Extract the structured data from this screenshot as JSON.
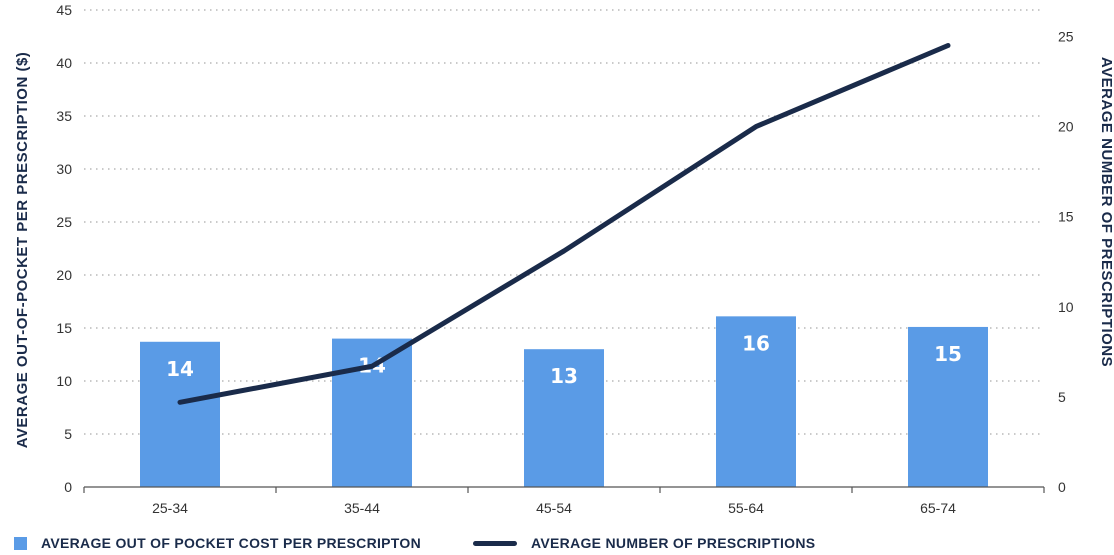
{
  "chart_data": {
    "type": "bar+line",
    "categories": [
      "25-34",
      "35-44",
      "45-54",
      "55-64",
      "65-74"
    ],
    "series": [
      {
        "name": "AVERAGE OUT OF POCKET COST PER PRESCRIPTON",
        "type": "bar",
        "axis": "left",
        "values": [
          14,
          14,
          13,
          16,
          15
        ],
        "labels": [
          "14",
          "14",
          "13",
          "16",
          "15"
        ],
        "plotted_values": [
          13.7,
          14.0,
          13.0,
          16.1,
          15.1
        ],
        "color": "#5a9be6"
      },
      {
        "name": "AVERAGE NUMBER OF PRESCRIPTIONS",
        "type": "line",
        "axis": "right",
        "values": [
          4.7,
          6.7,
          13.1,
          20.0,
          24.5
        ],
        "color": "#1a2b4a"
      }
    ],
    "y_left": {
      "label": "AVERAGE OUT-OF-POCKET PER PRESCRIPTION ($)",
      "ylim": [
        0,
        45
      ],
      "ticks": [
        0,
        5,
        10,
        15,
        20,
        25,
        30,
        35,
        40,
        45
      ]
    },
    "y_right": {
      "label": "AVERAGE NUMBER OF PRESCRIPTIONS",
      "ylim": [
        0,
        26.47
      ],
      "ticks": [
        0,
        5,
        10,
        15,
        20,
        25
      ]
    },
    "grid": "horizontal dotted",
    "legend_position": "bottom"
  }
}
